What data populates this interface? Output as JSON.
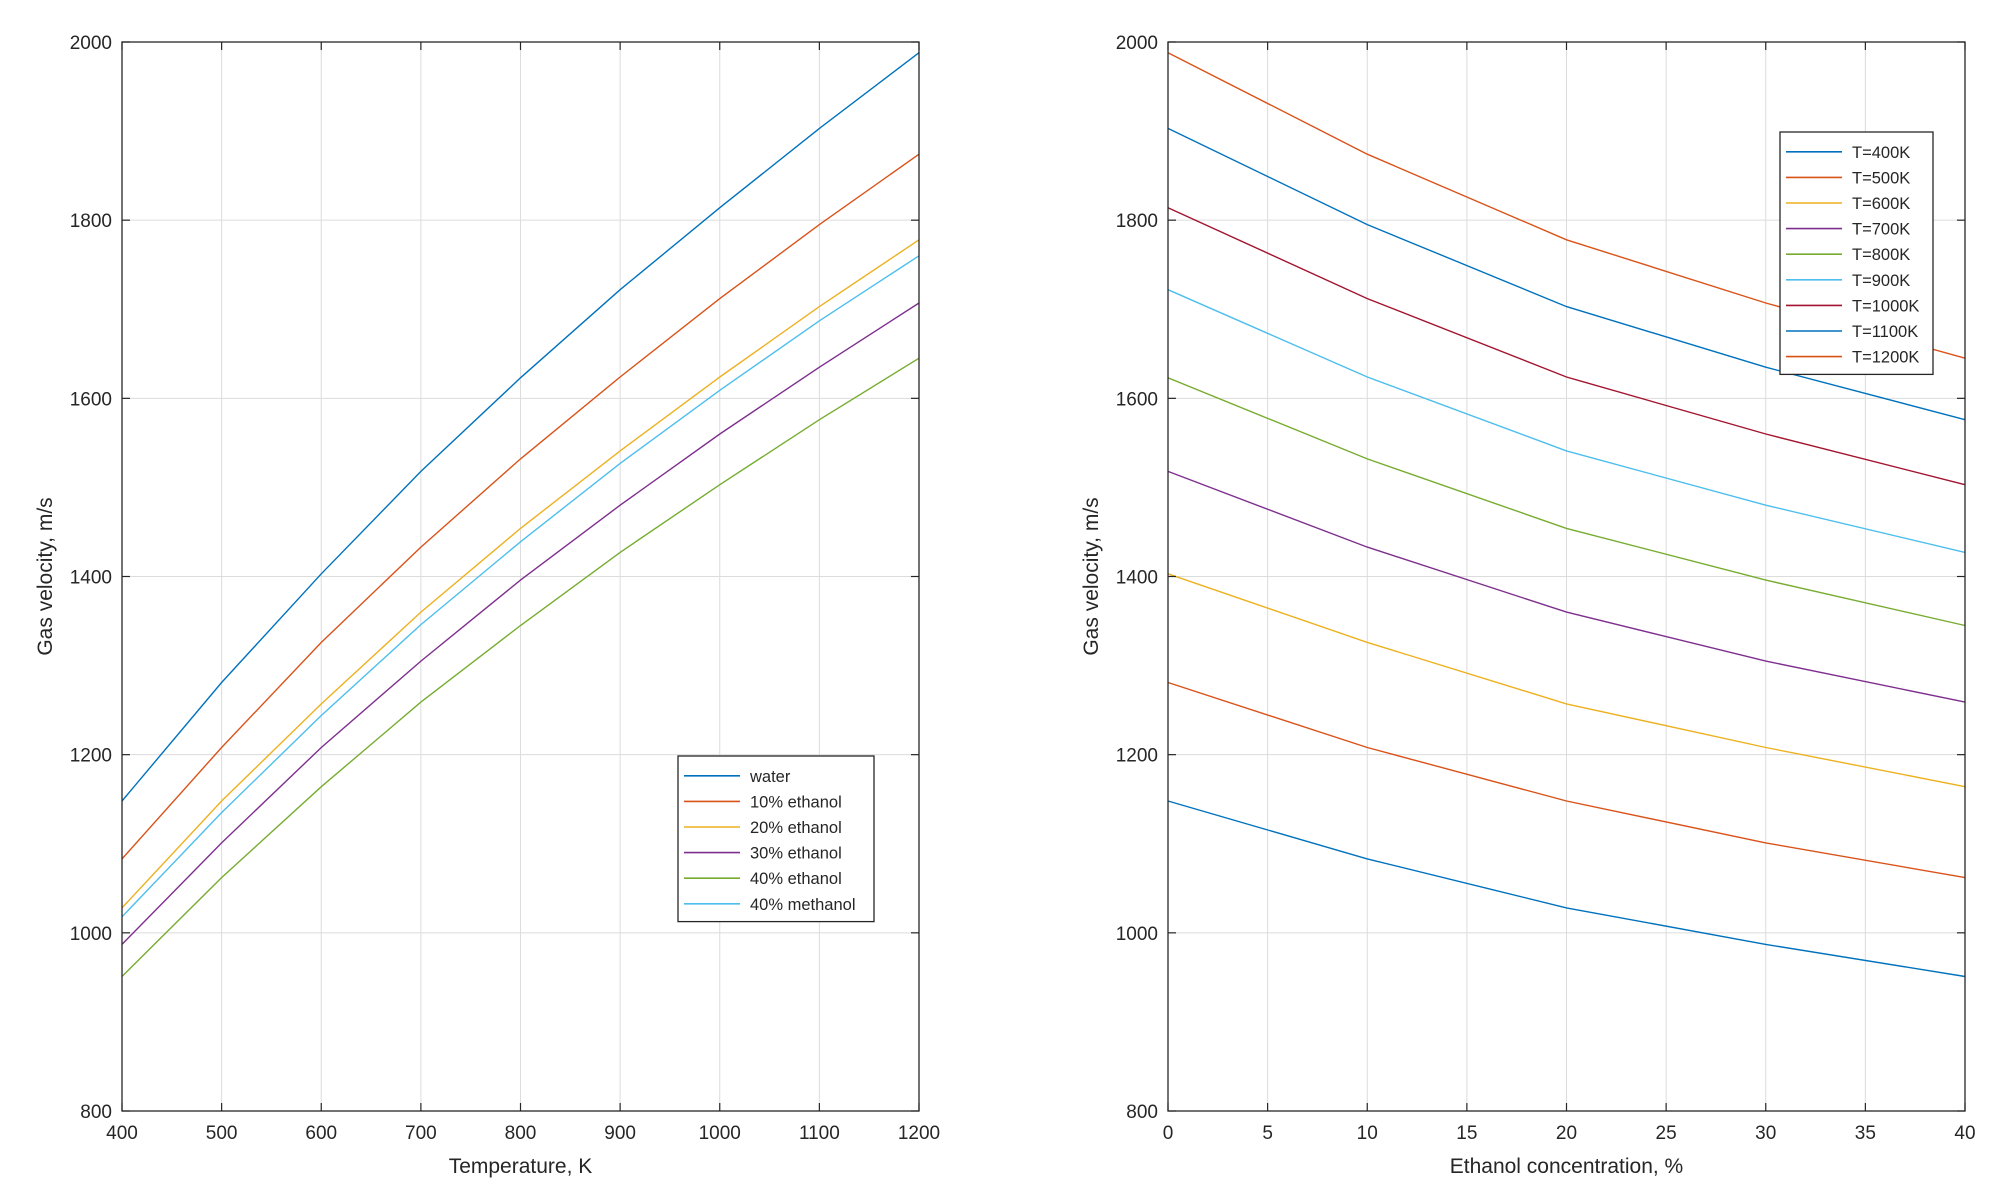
{
  "chart_data": [
    {
      "type": "line",
      "title": "",
      "xlabel": "Temperature, K",
      "ylabel": "Gas velocity, m/s",
      "xlim": [
        400,
        1200
      ],
      "ylim": [
        800,
        2000
      ],
      "xticks": [
        400,
        500,
        600,
        700,
        800,
        900,
        1000,
        1100,
        1200
      ],
      "yticks": [
        800,
        1000,
        1200,
        1400,
        1600,
        1800,
        2000
      ],
      "grid": true,
      "legend_position": "lower-right",
      "x": [
        400,
        500,
        600,
        700,
        800,
        900,
        1000,
        1100,
        1200
      ],
      "series": [
        {
          "name": "water",
          "color": "#0072BD",
          "values": [
            1148,
            1281,
            1403,
            1518,
            1623,
            1722,
            1814,
            1903,
            1988
          ]
        },
        {
          "name": "10% ethanol",
          "color": "#D95319",
          "values": [
            1083,
            1208,
            1326,
            1433,
            1532,
            1624,
            1712,
            1795,
            1874
          ]
        },
        {
          "name": "20% ethanol",
          "color": "#EDB120",
          "values": [
            1028,
            1148,
            1257,
            1360,
            1454,
            1541,
            1624,
            1703,
            1778
          ]
        },
        {
          "name": "30% ethanol",
          "color": "#7E2F8E",
          "values": [
            987,
            1101,
            1208,
            1305,
            1396,
            1480,
            1560,
            1635,
            1707
          ]
        },
        {
          "name": "40% ethanol",
          "color": "#77AC30",
          "values": [
            951,
            1062,
            1164,
            1259,
            1345,
            1427,
            1503,
            1576,
            1645
          ]
        },
        {
          "name": "40% methanol",
          "color": "#4DBEEE",
          "values": [
            1018,
            1135,
            1244,
            1346,
            1439,
            1527,
            1609,
            1687,
            1760
          ]
        }
      ]
    },
    {
      "type": "line",
      "title": "",
      "xlabel": "Ethanol concentration, %",
      "ylabel": "Gas velocity, m/s",
      "xlim": [
        0,
        40
      ],
      "ylim": [
        800,
        2000
      ],
      "xticks": [
        0,
        5,
        10,
        15,
        20,
        25,
        30,
        35,
        40
      ],
      "yticks": [
        800,
        1000,
        1200,
        1400,
        1600,
        1800,
        2000
      ],
      "grid": true,
      "legend_position": "top-right",
      "x": [
        0,
        10,
        20,
        30,
        40
      ],
      "series": [
        {
          "name": "T=400K",
          "color": "#0072BD",
          "values": [
            1148,
            1083,
            1028,
            987,
            951
          ]
        },
        {
          "name": "T=500K",
          "color": "#D95319",
          "values": [
            1281,
            1208,
            1148,
            1101,
            1062
          ]
        },
        {
          "name": "T=600K",
          "color": "#EDB120",
          "values": [
            1403,
            1326,
            1257,
            1208,
            1164
          ]
        },
        {
          "name": "T=700K",
          "color": "#7E2F8E",
          "values": [
            1518,
            1433,
            1360,
            1305,
            1259
          ]
        },
        {
          "name": "T=800K",
          "color": "#77AC30",
          "values": [
            1623,
            1532,
            1454,
            1396,
            1345
          ]
        },
        {
          "name": "T=900K",
          "color": "#4DBEEE",
          "values": [
            1722,
            1624,
            1541,
            1480,
            1427
          ]
        },
        {
          "name": "T=1000K",
          "color": "#A2142F",
          "values": [
            1814,
            1712,
            1624,
            1560,
            1503
          ]
        },
        {
          "name": "T=1100K",
          "color": "#0072BD",
          "values": [
            1903,
            1795,
            1703,
            1635,
            1576
          ]
        },
        {
          "name": "T=1200K",
          "color": "#D95319",
          "values": [
            1988,
            1874,
            1778,
            1707,
            1645
          ]
        }
      ]
    }
  ]
}
